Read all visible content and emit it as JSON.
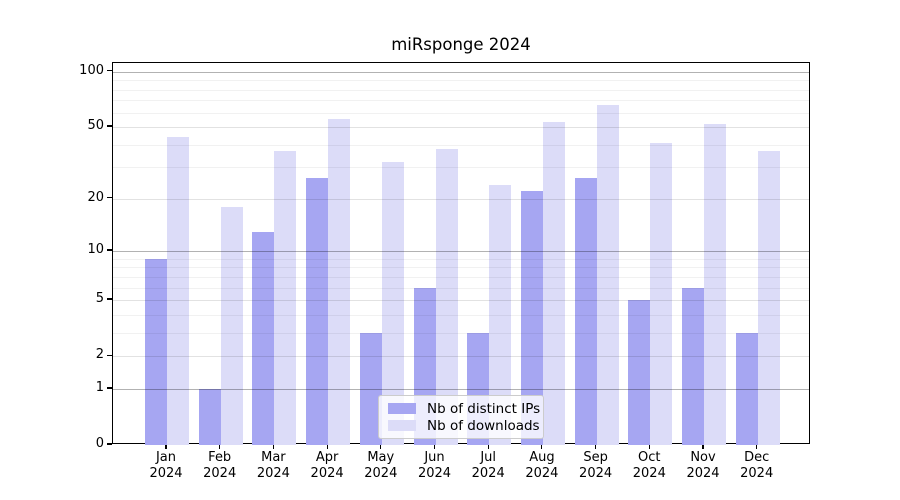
{
  "chart_data": {
    "type": "bar",
    "title": "miRsponge 2024",
    "categories": [
      {
        "month": "Jan",
        "year": "2024"
      },
      {
        "month": "Feb",
        "year": "2024"
      },
      {
        "month": "Mar",
        "year": "2024"
      },
      {
        "month": "Apr",
        "year": "2024"
      },
      {
        "month": "May",
        "year": "2024"
      },
      {
        "month": "Jun",
        "year": "2024"
      },
      {
        "month": "Jul",
        "year": "2024"
      },
      {
        "month": "Aug",
        "year": "2024"
      },
      {
        "month": "Sep",
        "year": "2024"
      },
      {
        "month": "Oct",
        "year": "2024"
      },
      {
        "month": "Nov",
        "year": "2024"
      },
      {
        "month": "Dec",
        "year": "2024"
      }
    ],
    "series": [
      {
        "name": "Nb of distinct IPs",
        "color": "#a6a6f2",
        "values": [
          9,
          1,
          13,
          26,
          3,
          6,
          3,
          22,
          26,
          5,
          6,
          3
        ]
      },
      {
        "name": "Nb of downloads",
        "color": "#dcdcf8",
        "values": [
          44,
          18,
          37,
          55,
          32,
          38,
          24,
          53,
          66,
          41,
          52,
          37
        ]
      }
    ],
    "yscale": "log1p",
    "ylim": [
      0,
      111.5
    ],
    "y_ticks": [
      0,
      1,
      2,
      5,
      10,
      20,
      50,
      100
    ],
    "y_minor_gridlines": [
      3,
      4,
      6,
      7,
      8,
      9,
      30,
      40,
      60,
      70,
      80,
      90
    ],
    "y_emphasis_gridlines": [
      1,
      10,
      100
    ],
    "grid": true,
    "legend_position": "lower center",
    "xlabel": "",
    "ylabel": ""
  }
}
